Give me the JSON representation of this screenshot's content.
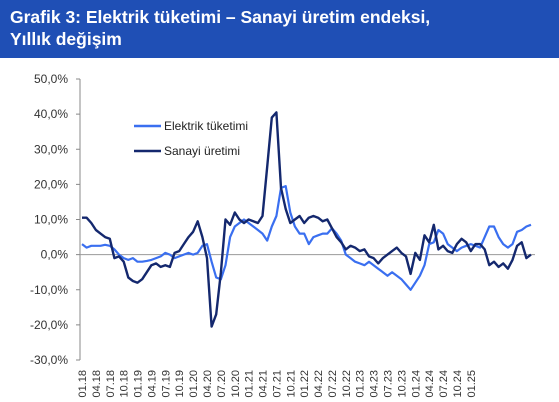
{
  "title": {
    "line1": "Grafik 3: Elektrik tüketimi – Sanayi üretim endeksi,",
    "line2": "Yıllık değişim"
  },
  "colors": {
    "title_bg": "#1f4fb5",
    "elektrik": "#3a6ff0",
    "sanayi": "#14286e"
  },
  "chart_data": {
    "type": "line",
    "title": "Grafik 3: Elektrik tüketimi – Sanayi üretim endeksi, Yıllık değişim",
    "xlabel": "",
    "ylabel": "",
    "ylim": [
      -30,
      50
    ],
    "y_tick_labels": [
      "50,0%",
      "40,0%",
      "30,0%",
      "20,0%",
      "10,0%",
      "0,0%",
      "-10,0%",
      "-20,0%",
      "-30,0%"
    ],
    "y_tick_values": [
      50,
      40,
      30,
      20,
      10,
      0,
      -10,
      -20,
      -30
    ],
    "x_tick_labels": [
      "01.18",
      "04.18",
      "07.18",
      "10.18",
      "01.19",
      "04.19",
      "07.19",
      "10.19",
      "01.20",
      "04.20",
      "07.20",
      "10.20",
      "01.21",
      "04.21",
      "07.21",
      "10.21",
      "01.22",
      "04.22",
      "07.22",
      "10.22",
      "01.23",
      "04.23",
      "07.23",
      "10.23",
      "01.24",
      "04.24",
      "07.24",
      "10.24",
      "01.25"
    ],
    "x_start": "01.18",
    "x_end": "04.25",
    "grid": false,
    "legend_position": "upper-left",
    "series": [
      {
        "name": "Elektrik tüketimi",
        "values": [
          3.0,
          2.0,
          2.5,
          2.5,
          2.5,
          2.8,
          2.5,
          1.5,
          0.0,
          -1.0,
          -1.5,
          -1.0,
          -2.0,
          -2.0,
          -1.8,
          -1.5,
          -1.0,
          -0.5,
          0.5,
          0.0,
          -1.0,
          -0.5,
          0.0,
          0.5,
          0.0,
          0.5,
          2.5,
          3.0,
          -2.0,
          -6.5,
          -7.0,
          -3.0,
          5.0,
          8.0,
          9.0,
          10.0,
          9.0,
          8.0,
          7.0,
          6.0,
          4.0,
          8.0,
          11.0,
          19.0,
          19.5,
          12.0,
          8.0,
          6.0,
          6.0,
          3.0,
          5.0,
          5.5,
          6.0,
          6.0,
          7.5,
          6.0,
          4.0,
          0.0,
          -1.0,
          -2.0,
          -2.5,
          -3.0,
          -2.0,
          -3.0,
          -4.0,
          -5.0,
          -6.0,
          -5.0,
          -6.0,
          -7.0,
          -8.5,
          -10.0,
          -8.0,
          -6.0,
          -3.0,
          3.0,
          3.5,
          7.0,
          6.0,
          3.0,
          2.0,
          1.0,
          2.0,
          2.5,
          3.0,
          2.5,
          2.0,
          5.0,
          8.0,
          8.0,
          5.0,
          3.0,
          2.0,
          3.0,
          6.5,
          7.0,
          8.0,
          8.5
        ],
        "color": "#3a6ff0"
      },
      {
        "name": "Sanayi üretimi",
        "values": [
          10.5,
          10.5,
          9.0,
          7.0,
          6.0,
          5.0,
          4.5,
          -1.0,
          -0.5,
          -2.0,
          -6.5,
          -7.5,
          -8.0,
          -7.0,
          -5.0,
          -3.0,
          -2.5,
          -3.5,
          -3.0,
          -3.5,
          0.5,
          1.0,
          3.0,
          5.0,
          6.5,
          9.5,
          5.0,
          -1.0,
          -20.5,
          -17.0,
          -5.0,
          10.0,
          8.5,
          12.0,
          10.0,
          9.0,
          10.0,
          9.5,
          9.0,
          11.0,
          25.0,
          39.0,
          40.5,
          19.0,
          13.0,
          9.0,
          10.0,
          11.0,
          9.0,
          10.5,
          11.0,
          10.5,
          9.5,
          10.0,
          7.5,
          5.0,
          3.5,
          1.5,
          2.5,
          2.0,
          1.0,
          1.5,
          -0.5,
          -1.0,
          -2.5,
          -1.0,
          0.0,
          1.0,
          2.0,
          0.5,
          -0.5,
          -5.5,
          0.5,
          -1.5,
          5.5,
          3.5,
          8.5,
          1.5,
          2.5,
          1.0,
          0.5,
          3.0,
          4.5,
          3.5,
          1.0,
          3.0,
          3.0,
          1.5,
          -3.0,
          -2.0,
          -3.5,
          -2.5,
          -4.0,
          -1.5,
          2.5,
          3.5,
          -1.0,
          0.0
        ],
        "color": "#14286e"
      }
    ]
  }
}
